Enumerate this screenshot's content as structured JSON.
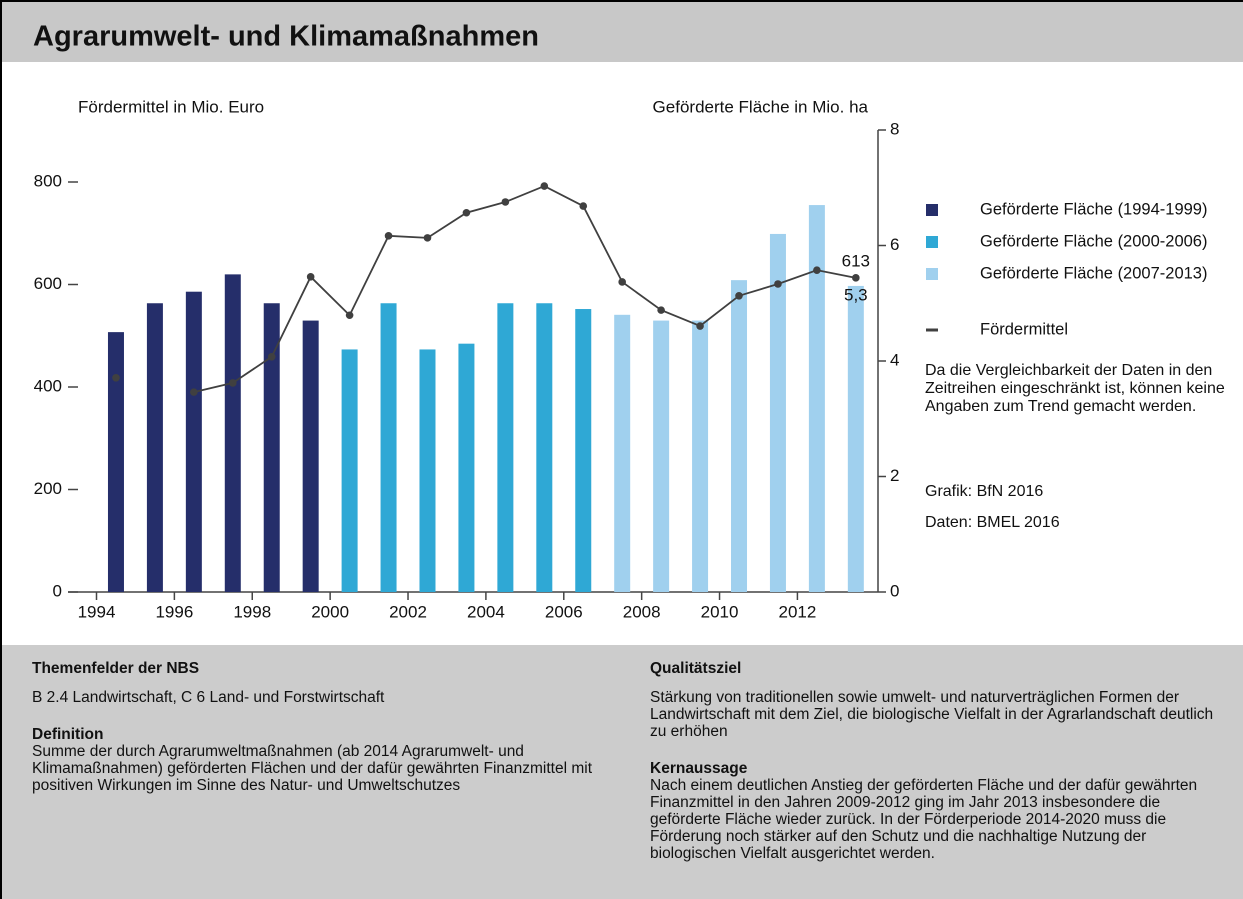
{
  "chart_data": {
    "type": "bar",
    "title": "Agrarumwelt- und Klimamaßnahmen",
    "ylabel": "Fördermittel in Mio. Euro",
    "y2label": "Geförderte Fläche in Mio. ha",
    "categories": [
      "1994",
      null,
      "1996",
      null,
      "1998",
      null,
      "2000",
      null,
      "2002",
      null,
      "2004",
      null,
      "2006",
      null,
      "2008",
      null,
      "2010",
      null,
      "2012",
      null
    ],
    "ylim": [
      0,
      800
    ],
    "yticks": [
      0,
      200,
      400,
      600,
      800
    ],
    "y2lim": [
      0,
      8
    ],
    "y2ticks": [
      0,
      2,
      4,
      6,
      8
    ],
    "series": [
      {
        "name": "Geförderte Fläche (1994-1999)",
        "type": "bar",
        "axis": "y2",
        "color": "#252e6a",
        "values": [
          4.5,
          5.0,
          5.2,
          5.5,
          5.0,
          4.7,
          null,
          null,
          null,
          null,
          null,
          null,
          null,
          null,
          null,
          null,
          null,
          null,
          null,
          null
        ]
      },
      {
        "name": "Geförderte Fläche (2000-2006)",
        "type": "bar",
        "axis": "y2",
        "color": "#2fa8d5",
        "values": [
          null,
          null,
          null,
          null,
          null,
          null,
          4.2,
          5.0,
          4.2,
          4.3,
          5.0,
          5.0,
          4.9,
          null,
          null,
          null,
          null,
          null,
          null,
          null
        ]
      },
      {
        "name": "Geförderte Fläche (2007-2013)",
        "type": "bar",
        "axis": "y2",
        "color": "#a0d0ee",
        "values": [
          null,
          null,
          null,
          null,
          null,
          null,
          null,
          null,
          null,
          null,
          null,
          null,
          null,
          4.8,
          4.7,
          4.7,
          5.4,
          6.2,
          6.7,
          5.3
        ],
        "value_labels": [
          null,
          null,
          null,
          null,
          null,
          null,
          null,
          null,
          null,
          null,
          null,
          null,
          null,
          null,
          null,
          null,
          null,
          null,
          null,
          "5,3"
        ]
      },
      {
        "name": "Fördermittel",
        "type": "line",
        "axis": "y",
        "color": "#404040",
        "values": [
          418,
          null,
          390,
          408,
          459,
          615,
          540,
          695,
          691,
          740,
          761,
          792,
          753,
          605,
          550,
          519,
          578,
          601,
          628,
          613
        ]
      }
    ],
    "note": "Da die Vergleichbarkeit der Daten in den Zeitreihen eingeschränkt ist, können keine Angaben zum Trend gemacht werden.",
    "source_graphic": "Grafik: BfN 2016",
    "source_data": "Daten: BMEL 2016"
  },
  "info": {
    "themenfelder": {
      "heading": "Themenfelder der NBS",
      "text": "B 2.4 Landwirtschaft, C 6 Land- und Forstwirtschaft"
    },
    "definition": {
      "heading": "Definition",
      "text": "Summe der durch Agrarumweltmaßnahmen (ab 2014 Agrarumwelt- und Klimamaßnahmen) geförderten Flächen und der dafür gewährten Finanzmittel mit positiven Wirkungen im Sinne des Natur- und Umweltschutzes"
    },
    "qualitaetsziel": {
      "heading": "Qualitätsziel",
      "text": "Stärkung von traditionellen sowie umwelt- und naturverträglichen Formen der Landwirtschaft mit dem Ziel, die biologische Vielfalt in der Agrarlandschaft deutlich zu erhöhen"
    },
    "kernaussage": {
      "heading": "Kernaussage",
      "text": "Nach einem deutlichen Anstieg der geförderten Fläche und der dafür gewährten Finanzmittel in den Jahren 2009-2012 ging im Jahr 2013 insbesondere die geförderte Fläche wieder zurück. In der Förderperiode 2014-2020 muss die Förderung noch stärker auf den Schutz und die nachhaltige Nutzung der biologischen Vielfalt ausgerichtet werden."
    }
  }
}
